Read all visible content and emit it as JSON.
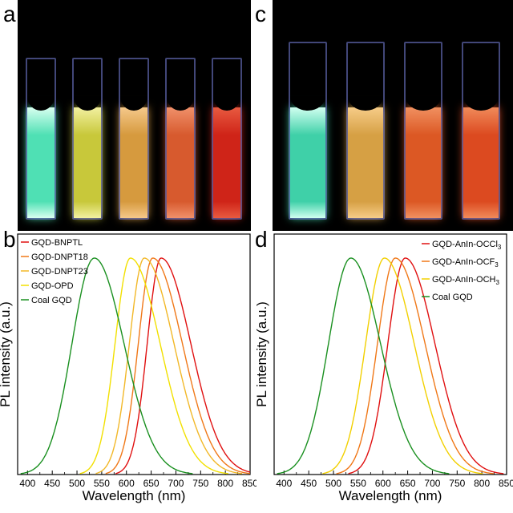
{
  "panel_labels": [
    "a",
    "b",
    "c",
    "d"
  ],
  "photos": {
    "a": {
      "cuvettes": [
        {
          "liquid": "#4fe0b4",
          "glow": "#d8fff0"
        },
        {
          "liquid": "#c8c83a",
          "glow": "#f2f0a0"
        },
        {
          "liquid": "#d69a3e",
          "glow": "#f5c88a"
        },
        {
          "liquid": "#d75a2e",
          "glow": "#f0906a"
        },
        {
          "liquid": "#cf2418",
          "glow": "#e85a40"
        }
      ]
    },
    "c": {
      "cuvettes": [
        {
          "liquid": "#3fd0a8",
          "glow": "#d0fff0"
        },
        {
          "liquid": "#d6a044",
          "glow": "#f6cc88"
        },
        {
          "liquid": "#dc5824",
          "glow": "#f09060"
        },
        {
          "liquid": "#dc4a20",
          "glow": "#f08a5a"
        }
      ]
    }
  },
  "chart_data": [
    {
      "type": "line",
      "panel": "b",
      "xlabel": "Wavelength (nm)",
      "ylabel": "PL intensity (a.u.)",
      "xlim": [
        380,
        850
      ],
      "xticks": [
        400,
        450,
        500,
        550,
        600,
        650,
        700,
        750,
        800,
        850
      ],
      "legend_position": "top-left",
      "series": [
        {
          "name": "GQD-BNPTL",
          "color": "#e01010",
          "peak": 670,
          "sigma_left": 28,
          "sigma_right": 60
        },
        {
          "name": "GQD-DNPT18",
          "color": "#f07818",
          "peak": 653,
          "sigma_left": 29,
          "sigma_right": 60
        },
        {
          "name": "GQD-DNPT23",
          "color": "#f2b828",
          "peak": 636,
          "sigma_left": 30,
          "sigma_right": 60
        },
        {
          "name": "GQD-OPD",
          "color": "#f2e000",
          "peak": 608,
          "sigma_left": 31,
          "sigma_right": 60
        },
        {
          "name": "Coal GQD",
          "color": "#1a9020",
          "peak": 535,
          "sigma_left": 45,
          "sigma_right": 60
        }
      ]
    },
    {
      "type": "line",
      "panel": "d",
      "xlabel": "Wavelength (nm)",
      "ylabel": "PL intensity (a.u.)",
      "xlim": [
        380,
        850
      ],
      "xticks": [
        400,
        450,
        500,
        550,
        600,
        650,
        700,
        750,
        800,
        850
      ],
      "legend_position": "top-right",
      "series": [
        {
          "name_main": "GQD-AnIn-OCCl",
          "name_sub": "3",
          "color": "#e01010",
          "peak": 645,
          "sigma_left": 35,
          "sigma_right": 60
        },
        {
          "name_main": "GQD-AnIn-OCF",
          "name_sub": "3",
          "color": "#f07818",
          "peak": 625,
          "sigma_left": 36,
          "sigma_right": 60
        },
        {
          "name_main": "GQD-AnIn-OCH",
          "name_sub": "3",
          "color": "#f2d000",
          "peak": 603,
          "sigma_left": 38,
          "sigma_right": 60
        },
        {
          "name_main": "Coal GQD",
          "name_sub": "",
          "color": "#1a9020",
          "peak": 535,
          "sigma_left": 45,
          "sigma_right": 60
        }
      ]
    }
  ]
}
